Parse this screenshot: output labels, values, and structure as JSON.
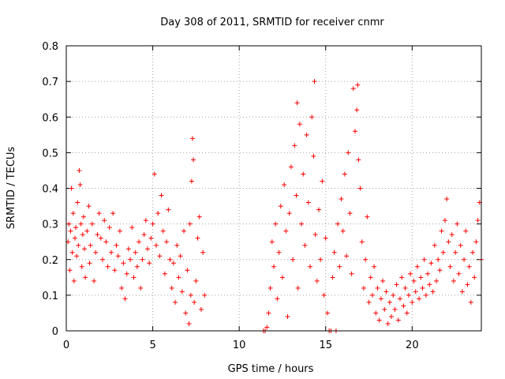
{
  "chart_data": {
    "type": "scatter",
    "title": "Day 308 of 2011, SRMTID for receiver cnmr",
    "xlabel": "GPS time / hours",
    "ylabel": "SRMTID / TECUs",
    "xlim": [
      0,
      24
    ],
    "ylim": [
      0,
      0.8
    ],
    "x_ticks": [
      0,
      5,
      10,
      15,
      20
    ],
    "x_tick_labels": [
      "0",
      "5",
      "10",
      "15",
      "20"
    ],
    "y_ticks": [
      0,
      0.1,
      0.2,
      0.3,
      0.4,
      0.5,
      0.6,
      0.7,
      0.8
    ],
    "y_tick_labels": [
      "0",
      "0.1",
      "0.2",
      "0.3",
      "0.4",
      "0.5",
      "0.6",
      "0.7",
      "0.8"
    ],
    "grid": true,
    "marker": "+",
    "color": "#ff0000",
    "series": [
      {
        "name": "SRMTID",
        "points": [
          [
            0.1,
            0.25
          ],
          [
            0.15,
            0.3
          ],
          [
            0.2,
            0.17
          ],
          [
            0.25,
            0.28
          ],
          [
            0.3,
            0.4
          ],
          [
            0.35,
            0.22
          ],
          [
            0.4,
            0.33
          ],
          [
            0.45,
            0.14
          ],
          [
            0.5,
            0.26
          ],
          [
            0.55,
            0.29
          ],
          [
            0.6,
            0.21
          ],
          [
            0.65,
            0.36
          ],
          [
            0.7,
            0.24
          ],
          [
            0.75,
            0.45
          ],
          [
            0.8,
            0.41
          ],
          [
            0.85,
            0.3
          ],
          [
            0.9,
            0.18
          ],
          [
            0.95,
            0.27
          ],
          [
            1.0,
            0.32
          ],
          [
            1.05,
            0.23
          ],
          [
            1.1,
            0.15
          ],
          [
            1.2,
            0.28
          ],
          [
            1.3,
            0.35
          ],
          [
            1.35,
            0.19
          ],
          [
            1.4,
            0.24
          ],
          [
            1.5,
            0.3
          ],
          [
            1.6,
            0.14
          ],
          [
            1.7,
            0.22
          ],
          [
            1.8,
            0.27
          ],
          [
            1.9,
            0.33
          ],
          [
            2.0,
            0.26
          ],
          [
            2.1,
            0.2
          ],
          [
            2.2,
            0.31
          ],
          [
            2.3,
            0.25
          ],
          [
            2.4,
            0.18
          ],
          [
            2.5,
            0.29
          ],
          [
            2.6,
            0.22
          ],
          [
            2.7,
            0.33
          ],
          [
            2.8,
            0.17
          ],
          [
            2.9,
            0.24
          ],
          [
            3.0,
            0.21
          ],
          [
            3.1,
            0.28
          ],
          [
            3.2,
            0.12
          ],
          [
            3.3,
            0.19
          ],
          [
            3.4,
            0.09
          ],
          [
            3.5,
            0.16
          ],
          [
            3.6,
            0.23
          ],
          [
            3.7,
            0.2
          ],
          [
            3.8,
            0.29
          ],
          [
            3.9,
            0.15
          ],
          [
            4.0,
            0.22
          ],
          [
            4.1,
            0.18
          ],
          [
            4.2,
            0.25
          ],
          [
            4.3,
            0.12
          ],
          [
            4.4,
            0.2
          ],
          [
            4.5,
            0.27
          ],
          [
            4.6,
            0.31
          ],
          [
            4.7,
            0.23
          ],
          [
            4.8,
            0.19
          ],
          [
            4.9,
            0.26
          ],
          [
            5.0,
            0.3
          ],
          [
            5.1,
            0.44
          ],
          [
            5.2,
            0.24
          ],
          [
            5.3,
            0.33
          ],
          [
            5.4,
            0.21
          ],
          [
            5.5,
            0.38
          ],
          [
            5.6,
            0.28
          ],
          [
            5.7,
            0.16
          ],
          [
            5.8,
            0.25
          ],
          [
            5.9,
            0.34
          ],
          [
            6.0,
            0.2
          ],
          [
            6.1,
            0.12
          ],
          [
            6.2,
            0.19
          ],
          [
            6.3,
            0.08
          ],
          [
            6.4,
            0.24
          ],
          [
            6.5,
            0.15
          ],
          [
            6.6,
            0.21
          ],
          [
            6.7,
            0.11
          ],
          [
            6.8,
            0.28
          ],
          [
            6.9,
            0.05
          ],
          [
            7.0,
            0.17
          ],
          [
            7.1,
            0.02
          ],
          [
            7.15,
            0.3
          ],
          [
            7.2,
            0.1
          ],
          [
            7.25,
            0.42
          ],
          [
            7.3,
            0.54
          ],
          [
            7.35,
            0.48
          ],
          [
            7.4,
            0.08
          ],
          [
            7.5,
            0.14
          ],
          [
            7.6,
            0.26
          ],
          [
            7.7,
            0.32
          ],
          [
            7.8,
            0.06
          ],
          [
            7.9,
            0.22
          ],
          [
            8.0,
            0.1
          ],
          [
            11.4,
            0.0
          ],
          [
            11.5,
            0.0
          ],
          [
            11.6,
            0.01
          ],
          [
            11.7,
            0.05
          ],
          [
            11.8,
            0.12
          ],
          [
            11.9,
            0.25
          ],
          [
            12.0,
            0.18
          ],
          [
            12.1,
            0.3
          ],
          [
            12.2,
            0.09
          ],
          [
            12.3,
            0.22
          ],
          [
            12.4,
            0.35
          ],
          [
            12.5,
            0.15
          ],
          [
            12.6,
            0.41
          ],
          [
            12.7,
            0.28
          ],
          [
            12.8,
            0.04
          ],
          [
            12.9,
            0.33
          ],
          [
            13.0,
            0.46
          ],
          [
            13.1,
            0.2
          ],
          [
            13.2,
            0.52
          ],
          [
            13.3,
            0.38
          ],
          [
            13.35,
            0.64
          ],
          [
            13.4,
            0.12
          ],
          [
            13.5,
            0.58
          ],
          [
            13.6,
            0.3
          ],
          [
            13.7,
            0.44
          ],
          [
            13.8,
            0.24
          ],
          [
            13.9,
            0.55
          ],
          [
            14.0,
            0.36
          ],
          [
            14.1,
            0.18
          ],
          [
            14.2,
            0.6
          ],
          [
            14.3,
            0.49
          ],
          [
            14.35,
            0.7
          ],
          [
            14.4,
            0.27
          ],
          [
            14.5,
            0.14
          ],
          [
            14.6,
            0.34
          ],
          [
            14.7,
            0.2
          ],
          [
            14.8,
            0.42
          ],
          [
            14.9,
            0.1
          ],
          [
            15.0,
            0.26
          ],
          [
            15.1,
            0.05
          ],
          [
            15.2,
            0.0
          ],
          [
            15.3,
            0.0
          ],
          [
            15.4,
            0.15
          ],
          [
            15.5,
            0.22
          ],
          [
            15.6,
            0.0
          ],
          [
            15.7,
            0.3
          ],
          [
            15.8,
            0.18
          ],
          [
            15.9,
            0.37
          ],
          [
            16.0,
            0.28
          ],
          [
            16.1,
            0.44
          ],
          [
            16.2,
            0.21
          ],
          [
            16.3,
            0.5
          ],
          [
            16.4,
            0.33
          ],
          [
            16.5,
            0.16
          ],
          [
            16.6,
            0.68
          ],
          [
            16.7,
            0.56
          ],
          [
            16.8,
            0.62
          ],
          [
            16.85,
            0.69
          ],
          [
            16.9,
            0.48
          ],
          [
            17.0,
            0.4
          ],
          [
            17.1,
            0.25
          ],
          [
            17.2,
            0.12
          ],
          [
            17.3,
            0.2
          ],
          [
            17.4,
            0.32
          ],
          [
            17.5,
            0.08
          ],
          [
            17.6,
            0.15
          ],
          [
            17.7,
            0.1
          ],
          [
            17.8,
            0.18
          ],
          [
            17.9,
            0.05
          ],
          [
            18.0,
            0.12
          ],
          [
            18.1,
            0.03
          ],
          [
            18.2,
            0.09
          ],
          [
            18.3,
            0.14
          ],
          [
            18.4,
            0.06
          ],
          [
            18.5,
            0.11
          ],
          [
            18.6,
            0.02
          ],
          [
            18.7,
            0.08
          ],
          [
            18.8,
            0.04
          ],
          [
            18.9,
            0.1
          ],
          [
            19.0,
            0.06
          ],
          [
            19.1,
            0.13
          ],
          [
            19.2,
            0.03
          ],
          [
            19.3,
            0.09
          ],
          [
            19.4,
            0.15
          ],
          [
            19.5,
            0.07
          ],
          [
            19.6,
            0.12
          ],
          [
            19.7,
            0.05
          ],
          [
            19.8,
            0.1
          ],
          [
            19.9,
            0.16
          ],
          [
            20.0,
            0.08
          ],
          [
            20.1,
            0.14
          ],
          [
            20.2,
            0.11
          ],
          [
            20.3,
            0.18
          ],
          [
            20.4,
            0.09
          ],
          [
            20.5,
            0.15
          ],
          [
            20.6,
            0.12
          ],
          [
            20.7,
            0.2
          ],
          [
            20.8,
            0.1
          ],
          [
            20.9,
            0.16
          ],
          [
            21.0,
            0.13
          ],
          [
            21.1,
            0.19
          ],
          [
            21.2,
            0.11
          ],
          [
            21.3,
            0.24
          ],
          [
            21.4,
            0.14
          ],
          [
            21.5,
            0.2
          ],
          [
            21.6,
            0.17
          ],
          [
            21.7,
            0.28
          ],
          [
            21.8,
            0.22
          ],
          [
            21.9,
            0.31
          ],
          [
            22.0,
            0.37
          ],
          [
            22.1,
            0.25
          ],
          [
            22.2,
            0.18
          ],
          [
            22.3,
            0.27
          ],
          [
            22.4,
            0.14
          ],
          [
            22.5,
            0.22
          ],
          [
            22.6,
            0.3
          ],
          [
            22.7,
            0.16
          ],
          [
            22.8,
            0.24
          ],
          [
            22.9,
            0.11
          ],
          [
            23.0,
            0.2
          ],
          [
            23.1,
            0.28
          ],
          [
            23.2,
            0.13
          ],
          [
            23.3,
            0.18
          ],
          [
            23.4,
            0.08
          ],
          [
            23.5,
            0.22
          ],
          [
            23.6,
            0.15
          ],
          [
            23.7,
            0.25
          ],
          [
            23.8,
            0.31
          ],
          [
            23.9,
            0.36
          ],
          [
            24.0,
            0.2
          ]
        ]
      }
    ]
  }
}
